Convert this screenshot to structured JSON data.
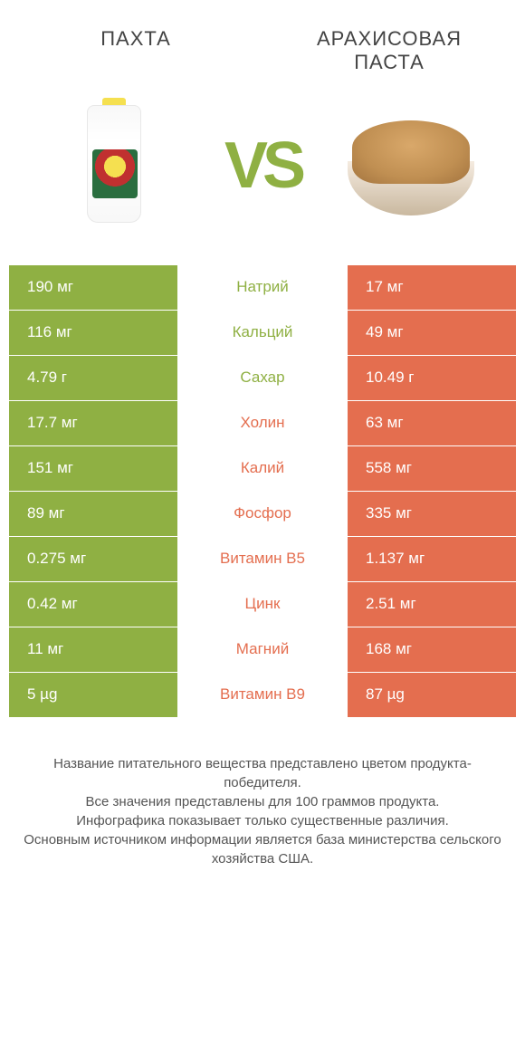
{
  "titles": {
    "left": "ПАХТА",
    "right": "АРАХИСОВАЯ ПАСТА"
  },
  "vs": "VS",
  "colors": {
    "green": "#8fb043",
    "orange": "#e46e4f",
    "white": "#ffffff",
    "mid_text_green": "#8fb043",
    "mid_text_orange": "#e46e4f"
  },
  "rows": [
    {
      "left": "190 мг",
      "mid": "Натрий",
      "right": "17 мг",
      "winner": "left"
    },
    {
      "left": "116 мг",
      "mid": "Кальций",
      "right": "49 мг",
      "winner": "left"
    },
    {
      "left": "4.79 г",
      "mid": "Сахар",
      "right": "10.49 г",
      "winner": "left"
    },
    {
      "left": "17.7 мг",
      "mid": "Холин",
      "right": "63 мг",
      "winner": "right"
    },
    {
      "left": "151 мг",
      "mid": "Калий",
      "right": "558 мг",
      "winner": "right"
    },
    {
      "left": "89 мг",
      "mid": "Фосфор",
      "right": "335 мг",
      "winner": "right"
    },
    {
      "left": "0.275 мг",
      "mid": "Витамин B5",
      "right": "1.137 мг",
      "winner": "right"
    },
    {
      "left": "0.42 мг",
      "mid": "Цинк",
      "right": "2.51 мг",
      "winner": "right"
    },
    {
      "left": "11 мг",
      "mid": "Магний",
      "right": "168 мг",
      "winner": "right"
    },
    {
      "left": "5 µg",
      "mid": "Витамин B9",
      "right": "87 µg",
      "winner": "right"
    }
  ],
  "footer_lines": [
    "Название питательного вещества представлено цветом продукта-победителя.",
    "Все значения представлены для 100 граммов продукта.",
    "Инфографика показывает только существенные различия.",
    "Основным источником информации является база министерства сельского хозяйства США."
  ]
}
